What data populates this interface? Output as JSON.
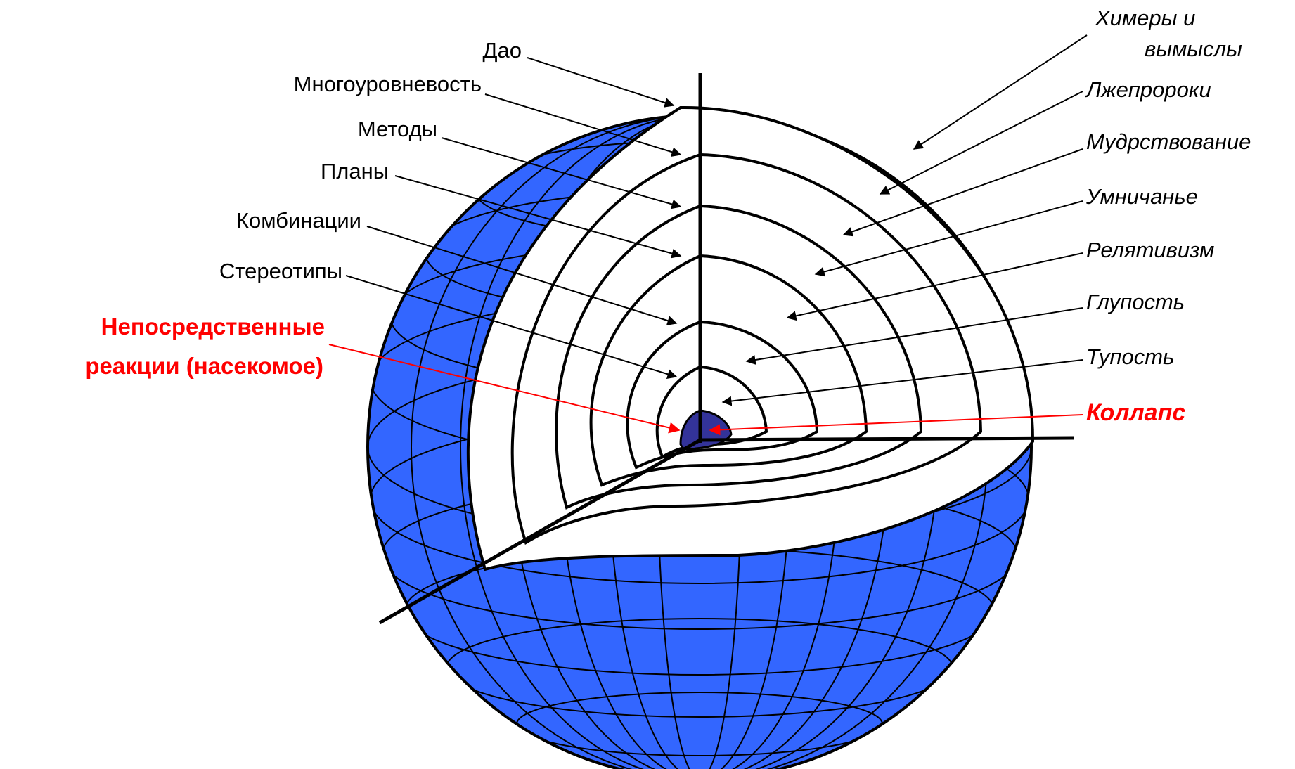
{
  "colors": {
    "sphere_fill": "#3366ff",
    "core_fill": "#333399",
    "line": "#000000",
    "accent_red": "#ff0000"
  },
  "left_labels": [
    "Дао",
    "Многоуровневость",
    "Методы",
    "Планы",
    "Комбинации",
    "Стереотипы"
  ],
  "left_highlight": {
    "line1": "Непосредственные",
    "line2": "реакции  (насекомое)"
  },
  "right_labels": [
    {
      "lines": [
        "Химеры и",
        "вымыслы"
      ]
    },
    {
      "lines": [
        "Лжепророки"
      ]
    },
    {
      "lines": [
        "Мудрствование"
      ]
    },
    {
      "lines": [
        "Умничанье"
      ]
    },
    {
      "lines": [
        "Релятивизм"
      ]
    },
    {
      "lines": [
        "Глупость"
      ]
    },
    {
      "lines": [
        "Тупость"
      ]
    }
  ],
  "right_highlight": "Коллапс"
}
